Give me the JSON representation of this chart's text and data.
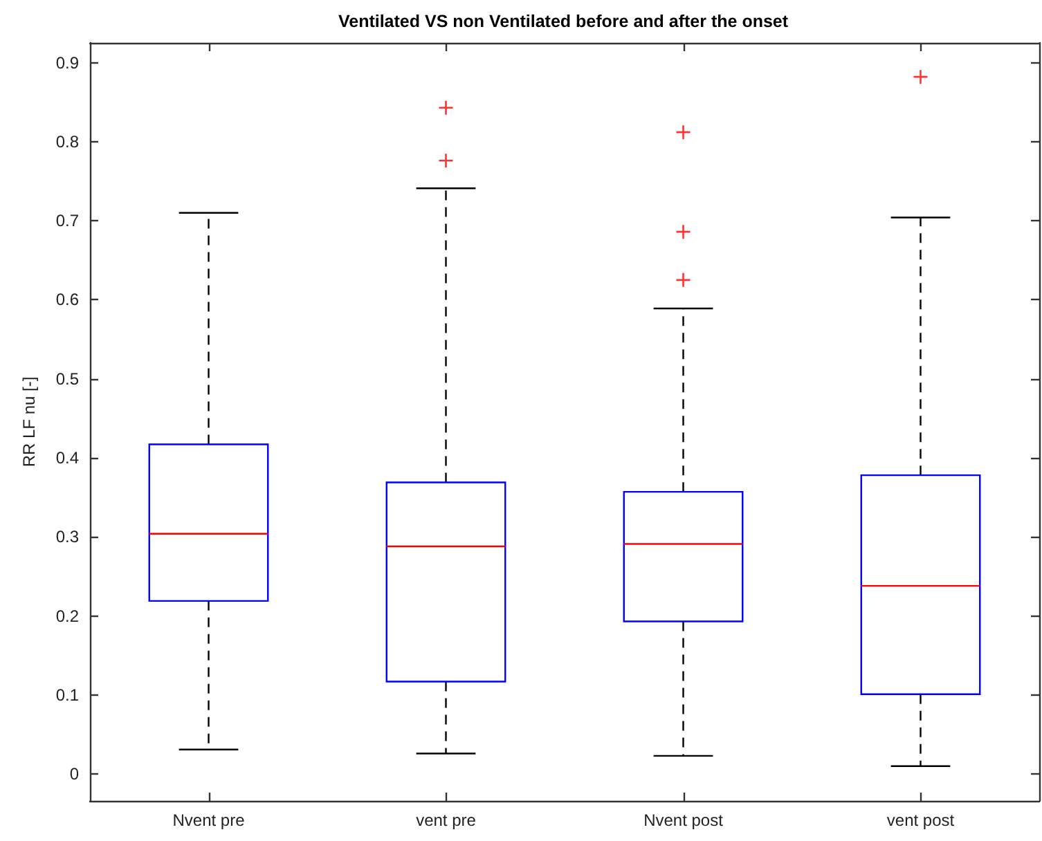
{
  "chart_data": {
    "type": "box",
    "title": "Ventilated VS non Ventilated before and after the onset",
    "ylabel": "RR LF nu [-]",
    "categories": [
      "Nvent pre",
      "vent pre",
      "Nvent post",
      "vent post"
    ],
    "series": [
      {
        "color": "#0000ff",
        "boxes": [
          {
            "low": 0.031,
            "q1": 0.219,
            "median": 0.304,
            "q3": 0.417,
            "high": 0.71
          },
          {
            "low": 0.026,
            "q1": 0.117,
            "median": 0.288,
            "q3": 0.369,
            "high": 0.741,
            "outliers": [
              0.776,
              0.843
            ]
          },
          {
            "low": 0.023,
            "q1": 0.193,
            "median": 0.291,
            "q3": 0.357,
            "high": 0.589,
            "outliers": [
              0.625,
              0.686,
              0.812
            ]
          },
          {
            "low": 0.01,
            "q1": 0.101,
            "median": 0.238,
            "q3": 0.378,
            "high": 0.704,
            "outliers": [
              0.882
            ]
          }
        ]
      }
    ],
    "ylim": [
      -0.034,
      0.925
    ],
    "yticks": [
      0,
      0.1,
      0.2,
      0.3,
      0.4,
      0.5,
      0.6,
      0.7,
      0.8,
      0.9
    ],
    "grid": false,
    "marker": "cross"
  }
}
